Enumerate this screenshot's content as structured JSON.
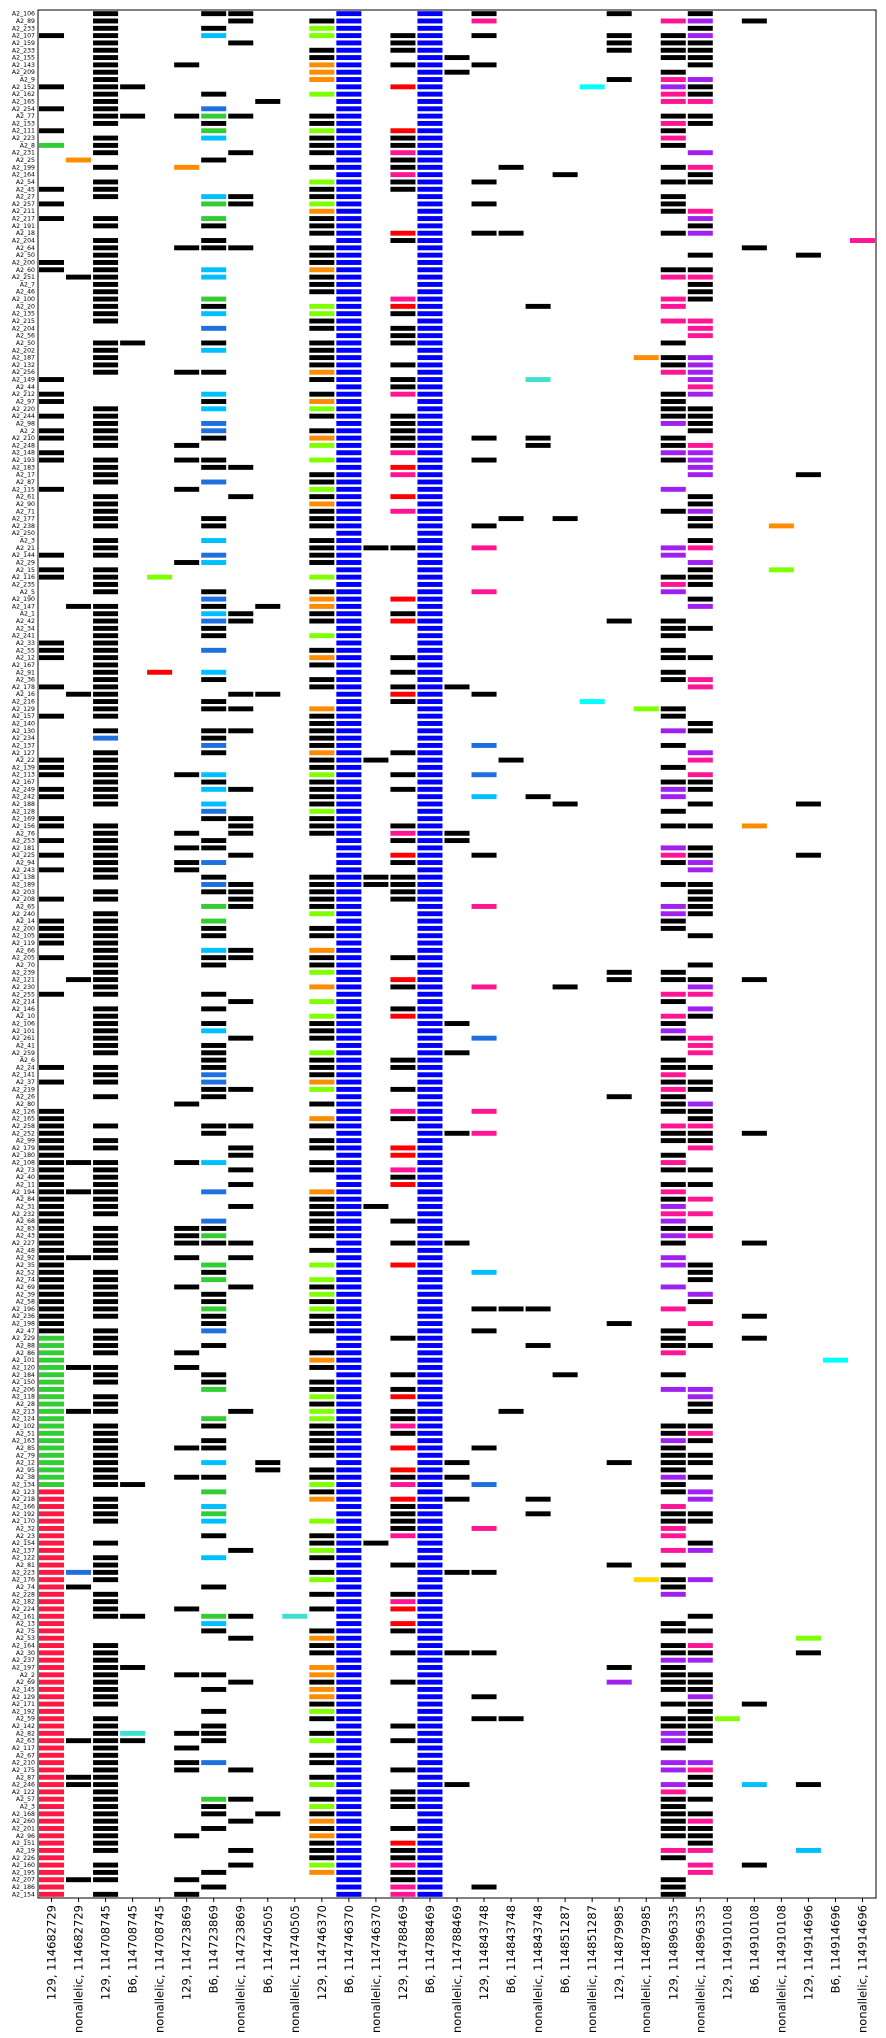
{
  "chart_data": {
    "type": "heatmap",
    "title": "",
    "xlabel": "",
    "ylabel": "",
    "grid": false,
    "legend": "none",
    "columns": [
      "129, 114682729",
      "nonallelic, 114682729",
      "129, 114708745",
      "B6, 114708745",
      "nonallelic, 114708745",
      "129, 114723869",
      "B6, 114723869",
      "nonallelic, 114723869",
      "B6, 114740505",
      "nonallelic, 114740505",
      "129, 114746370",
      "B6, 114746370",
      "nonallelic, 114746370",
      "129, 114788469",
      "B6, 114788469",
      "nonallelic, 114788469",
      "129, 114843748",
      "B6, 114843748",
      "nonallelic, 114843748",
      "B6, 114851287",
      "nonallelic, 114851287",
      "129, 114879985",
      "nonallelic, 114879985",
      "129, 114896335",
      "nonallelic, 114896335",
      "129, 114910108",
      "B6, 114910108",
      "nonallelic, 114910108",
      "129, 114914696",
      "B6, 114914696",
      "nonallelic, 114914696"
    ],
    "rows": [
      "A2_106",
      "A2_89",
      "A2_233",
      "A2_107",
      "A2_159",
      "A2_233",
      "A2_155",
      "A2_143",
      "A2_209",
      "A2_9",
      "A2_152",
      "A2_162",
      "A2_165",
      "A2_254",
      "A2_77",
      "A2_153",
      "A2_111",
      "A2_223",
      "A2_8",
      "A2_231",
      "A2_25",
      "A2_199",
      "A2_164",
      "A2_54",
      "A2_45",
      "A2_27",
      "A2_257",
      "A2_211",
      "A2_217",
      "A2_191",
      "A2_18",
      "A2_204",
      "A2_64",
      "A2_50",
      "A2_200",
      "A2_60",
      "A2_251",
      "A2_7",
      "A2_46",
      "A2_100",
      "A2_20",
      "A2_135",
      "A2_215",
      "A2_204",
      "A2_56",
      "A2_50",
      "A2_202",
      "A2_187",
      "A2_132",
      "A2_256",
      "A2_149",
      "A2_44",
      "A2_212",
      "A2_97",
      "A2_220",
      "A2_244",
      "A2_98",
      "A2_2",
      "A2_210",
      "A2_248",
      "A2_148",
      "A2_193",
      "A2_183",
      "A2_17",
      "A2_87",
      "A2_115",
      "A2_61",
      "A2_90",
      "A2_71",
      "A2_177",
      "A2_238",
      "A2_250",
      "A2_3",
      "A2_21",
      "A2_144",
      "A2_29",
      "A2_15",
      "A2_116",
      "A2_235",
      "A2_5",
      "A2_190",
      "A2_147",
      "A2_1",
      "A2_42",
      "A2_34",
      "A2_241",
      "A2_33",
      "A2_55",
      "A2_12",
      "A2_167",
      "A2_91",
      "A2_36",
      "A2_178",
      "A2_16",
      "A2_216",
      "A2_129",
      "A2_157",
      "A2_140",
      "A2_130",
      "A2_234",
      "A2_137",
      "A2_127",
      "A2_22",
      "A2_139",
      "A2_113",
      "A2_167",
      "A2_249",
      "A2_242",
      "A2_188",
      "A2_128",
      "A2_169",
      "A2_156",
      "A2_76",
      "A2_253",
      "A2_181",
      "A2_225",
      "A2_94",
      "A2_243",
      "A2_138",
      "A2_189",
      "A2_203",
      "A2_208",
      "A2_65",
      "A2_240",
      "A2_14",
      "A2_200",
      "A2_105",
      "A2_119",
      "A2_66",
      "A2_205",
      "A2_70",
      "A2_239",
      "A2_121",
      "A2_230",
      "A2_255",
      "A2_214",
      "A2_146",
      "A2_10",
      "A2_106",
      "A2_101",
      "A2_261",
      "A2_41",
      "A2_259",
      "A2_6",
      "A2_24",
      "A2_141",
      "A2_37",
      "A2_219",
      "A2_26",
      "A2_80",
      "A2_126",
      "A2_165",
      "A2_258",
      "A2_252",
      "A2_99",
      "A2_179",
      "A2_180",
      "A2_108",
      "A2_73",
      "A2_40",
      "A2_11",
      "A2_194",
      "A2_84",
      "A2_31",
      "A2_232",
      "A2_68",
      "A2_83",
      "A2_43",
      "A2_227",
      "A2_48",
      "A2_92",
      "A2_35",
      "A2_52",
      "A2_74",
      "A2_69",
      "A2_39",
      "A2_58",
      "A2_196",
      "A2_236",
      "A2_198",
      "A2_47",
      "A2_229",
      "A2_88",
      "A2_86",
      "A2_101",
      "A2_120",
      "A2_184",
      "A2_150",
      "A2_206",
      "A2_118",
      "A2_28",
      "A2_213",
      "A2_124",
      "A2_102",
      "A2_51",
      "A2_163",
      "A2_85",
      "A2_79",
      "A2_12",
      "A2_95",
      "A2_38",
      "A2_134",
      "A2_123",
      "A2_218",
      "A2_166",
      "A2_192",
      "A2_170",
      "A2_32",
      "A2_23",
      "A2_154",
      "A2_137",
      "A2_122",
      "A2_81",
      "A2_223",
      "A2_176",
      "A2_74",
      "A2_228",
      "A2_182",
      "A2_224",
      "A2_161",
      "A2_13",
      "A2_75",
      "A2_53",
      "A2_164",
      "A2_30",
      "A2_237",
      "A2_197",
      "A2_2",
      "A2_69",
      "A2_145",
      "A2_129",
      "A2_171",
      "A2_192",
      "A2_59",
      "A2_142",
      "A2_82",
      "A2_63",
      "A2_117",
      "A2_67",
      "A2_210",
      "A2_175",
      "A2_87",
      "A2_246",
      "A2_122",
      "A2_57",
      "A2_3",
      "A2_168",
      "A2_260",
      "A2_201",
      "A2_96",
      "A2_151",
      "A2_19",
      "A2_226",
      "A2_160",
      "A2_195",
      "A2_207",
      "A2_186",
      "A2_154"
    ]
  }
}
